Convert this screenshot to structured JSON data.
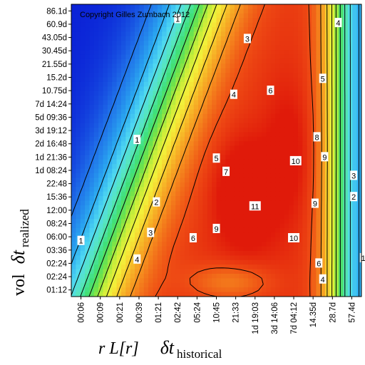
{
  "chart_data": {
    "type": "heatmap",
    "copyright": "Copyright Gilles Zumbach 2012",
    "x_ticks": [
      "00:06",
      "00:09",
      "00:21",
      "00:39",
      "01:21",
      "02:42",
      "05:24",
      "10:45",
      "21:33",
      "1d 19:03",
      "3d 14:06",
      "7d 04:12",
      "14.35d",
      "28.7d",
      "57.4d"
    ],
    "y_ticks": [
      "86.1d",
      "60.9d",
      "43.05d",
      "30.45d",
      "21.55d",
      "15.2d",
      "10.75d",
      "7d 14:24",
      "5d 09:36",
      "3d 19:12",
      "2d 16:48",
      "1d 21:36",
      "1d 08:24",
      "22:48",
      "15:36",
      "12:00",
      "08:24",
      "06:00",
      "03:36",
      "02:24",
      "02:24",
      "01:12"
    ],
    "x_title": {
      "prefix": "r L[r]",
      "symbol": "δt",
      "subscript": "historical"
    },
    "y_title": {
      "prefix": "vol",
      "symbol": "δt",
      "subscript": "realized"
    },
    "color_scale": [
      "#0a1fd6",
      "#1f6ee8",
      "#2aa6f0",
      "#4fd8f2",
      "#57e6c0",
      "#3fe07a",
      "#6fe24a",
      "#c8ee3a",
      "#f4f03a",
      "#f7c02a",
      "#f58a1e",
      "#ee4a14",
      "#e01a0a"
    ],
    "value_range": [
      0,
      11
    ],
    "contour_labels": [
      {
        "text": "1",
        "col": 0.0,
        "row": 17.3
      },
      {
        "text": "1",
        "col": 2.9,
        "row": 9.7
      },
      {
        "text": "1",
        "col": 5.0,
        "row": 0.6
      },
      {
        "text": "2",
        "col": 3.9,
        "row": 14.4
      },
      {
        "text": "3",
        "col": 3.6,
        "row": 16.7
      },
      {
        "text": "3",
        "col": 8.6,
        "row": 2.1
      },
      {
        "text": "4",
        "col": 2.9,
        "row": 18.7
      },
      {
        "text": "4",
        "col": 7.9,
        "row": 6.3
      },
      {
        "text": "4",
        "col": 13.3,
        "row": 0.9
      },
      {
        "text": "5",
        "col": 7.0,
        "row": 11.1
      },
      {
        "text": "5",
        "col": 12.5,
        "row": 5.1
      },
      {
        "text": "6",
        "col": 5.8,
        "row": 17.1
      },
      {
        "text": "6",
        "col": 9.8,
        "row": 6.0
      },
      {
        "text": "7",
        "col": 7.5,
        "row": 12.1
      },
      {
        "text": "8",
        "col": 12.2,
        "row": 9.5
      },
      {
        "text": "9",
        "col": 7.0,
        "row": 16.4
      },
      {
        "text": "9",
        "col": 12.1,
        "row": 14.5
      },
      {
        "text": "9",
        "col": 12.6,
        "row": 11.0
      },
      {
        "text": "10",
        "col": 11.1,
        "row": 11.3
      },
      {
        "text": "10",
        "col": 11.0,
        "row": 17.1
      },
      {
        "text": "11",
        "col": 9.0,
        "row": 14.7
      },
      {
        "text": "6",
        "col": 12.3,
        "row": 19.0
      },
      {
        "text": "4",
        "col": 12.5,
        "row": 20.2
      },
      {
        "text": "3",
        "col": 14.1,
        "row": 12.4
      },
      {
        "text": "2",
        "col": 14.1,
        "row": 14.0
      },
      {
        "text": "1",
        "col": 14.6,
        "row": 18.6
      }
    ]
  }
}
